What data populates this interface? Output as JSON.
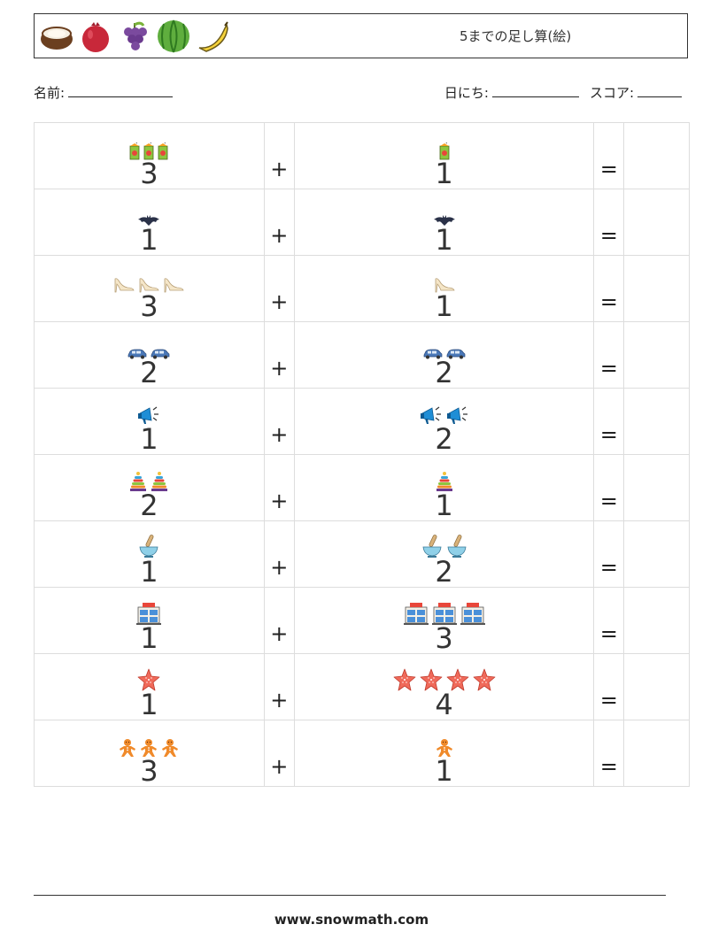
{
  "header": {
    "title": "5までの足し算(絵)",
    "fruits": [
      "coconut-icon",
      "pomegranate-icon",
      "grapes-icon",
      "watermelon-icon",
      "banana-icon"
    ]
  },
  "info": {
    "name_label": "名前:",
    "date_label": "日にち:",
    "score_label": "スコア:"
  },
  "operators": {
    "plus": "+",
    "equals": "="
  },
  "problems": [
    {
      "icon": "juice-box-icon",
      "a": "3",
      "b": "1"
    },
    {
      "icon": "bat-icon",
      "a": "1",
      "b": "1"
    },
    {
      "icon": "high-heel-shoe-icon",
      "a": "3",
      "b": "1"
    },
    {
      "icon": "car-icon",
      "a": "2",
      "b": "2"
    },
    {
      "icon": "megaphone-icon",
      "a": "1",
      "b": "2"
    },
    {
      "icon": "stacking-rings-icon",
      "a": "2",
      "b": "1"
    },
    {
      "icon": "mortar-pestle-icon",
      "a": "1",
      "b": "2"
    },
    {
      "icon": "shop-building-icon",
      "a": "1",
      "b": "3"
    },
    {
      "icon": "starfish-icon",
      "a": "1",
      "b": "4"
    },
    {
      "icon": "gingerbread-man-icon",
      "a": "3",
      "b": "1"
    }
  ],
  "footer": {
    "website": "www.snowmath.com"
  }
}
